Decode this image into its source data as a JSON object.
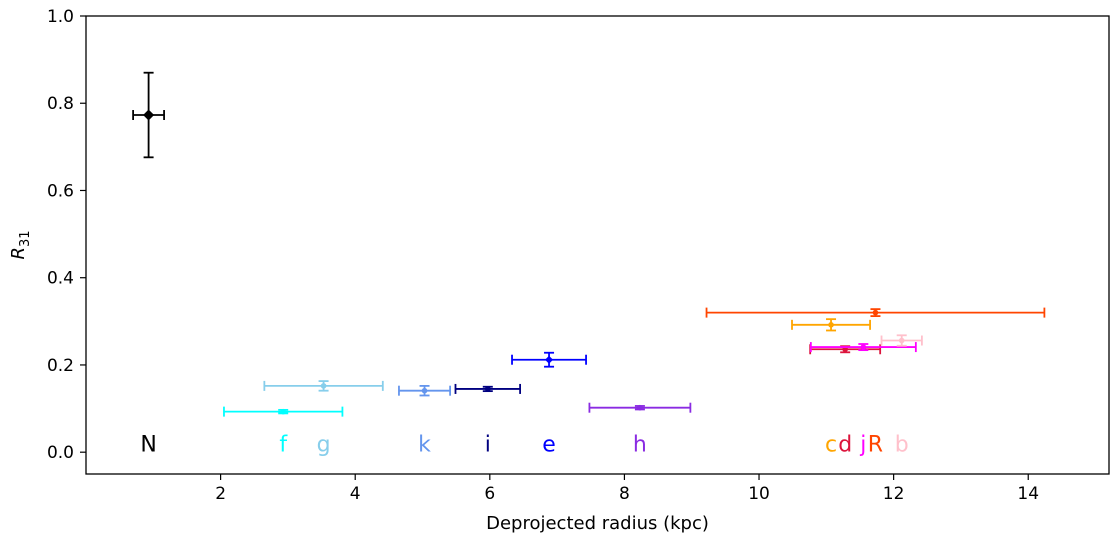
{
  "chart_data": {
    "type": "scatter",
    "title": "",
    "xlabel": "Deprojected radius (kpc)",
    "ylabel": "R",
    "ylabel_sub": "31",
    "xlim": [
      0.0,
      15.2
    ],
    "ylim": [
      -0.05,
      1.0
    ],
    "xticks": [
      2,
      4,
      6,
      8,
      10,
      12,
      14
    ],
    "xtick_labels": [
      "2",
      "4",
      "6",
      "8",
      "10",
      "12",
      "14"
    ],
    "yticks": [
      0.0,
      0.2,
      0.4,
      0.6,
      0.8,
      1.0
    ],
    "ytick_labels": [
      "0.0",
      "0.2",
      "0.4",
      "0.6",
      "0.8",
      "1.0"
    ],
    "grid": false,
    "label_y": 0.02,
    "points": [
      {
        "label": "N",
        "x": 0.93,
        "xerr": [
          0.23,
          0.23
        ],
        "y": 0.773,
        "yerr": [
          0.097,
          0.097
        ],
        "color": "#000000",
        "marker": "diamond"
      },
      {
        "label": "f",
        "x": 2.93,
        "xerr": [
          0.88,
          0.88
        ],
        "y": 0.093,
        "yerr": [
          0.004,
          0.004
        ],
        "color": "#00ffff",
        "marker": "circle"
      },
      {
        "label": "g",
        "x": 3.53,
        "xerr": [
          0.88,
          0.88
        ],
        "y": 0.152,
        "yerr": [
          0.011,
          0.011
        ],
        "color": "#87ceeb",
        "marker": "circle"
      },
      {
        "label": "k",
        "x": 5.03,
        "xerr": [
          0.38,
          0.38
        ],
        "y": 0.141,
        "yerr": [
          0.011,
          0.011
        ],
        "color": "#6495ed",
        "marker": "circle"
      },
      {
        "label": "i",
        "x": 5.97,
        "xerr": [
          0.48,
          0.48
        ],
        "y": 0.145,
        "yerr": [
          0.005,
          0.005
        ],
        "color": "#000080",
        "marker": "circle"
      },
      {
        "label": "e",
        "x": 6.88,
        "xerr": [
          0.55,
          0.55
        ],
        "y": 0.212,
        "yerr": [
          0.016,
          0.016
        ],
        "color": "#0000ff",
        "marker": "diamond"
      },
      {
        "label": "h",
        "x": 8.23,
        "xerr": [
          0.75,
          0.75
        ],
        "y": 0.102,
        "yerr": [
          0.004,
          0.004
        ],
        "color": "#8a2be2",
        "marker": "circle"
      },
      {
        "label": "c",
        "x": 11.07,
        "xerr": [
          0.58,
          0.58
        ],
        "y": 0.292,
        "yerr": [
          0.013,
          0.013
        ],
        "color": "#ffa500",
        "marker": "circle"
      },
      {
        "label": "d",
        "x": 11.28,
        "xerr": [
          0.52,
          0.52
        ],
        "y": 0.236,
        "yerr": [
          0.007,
          0.007
        ],
        "color": "#dc143c",
        "marker": "circle"
      },
      {
        "label": "j",
        "x": 11.55,
        "xerr": [
          0.78,
          0.78
        ],
        "y": 0.241,
        "yerr": [
          0.007,
          0.007
        ],
        "color": "#ff00ff",
        "marker": "circle"
      },
      {
        "label": "R",
        "x": 11.73,
        "xerr": [
          2.51,
          2.51
        ],
        "y": 0.32,
        "yerr": [
          0.008,
          0.008
        ],
        "color": "#ff4500",
        "marker": "circle"
      },
      {
        "label": "b",
        "x": 12.12,
        "xerr": [
          0.3,
          0.3
        ],
        "y": 0.256,
        "yerr": [
          0.012,
          0.012
        ],
        "color": "#ffc0cb",
        "marker": "circle"
      }
    ]
  }
}
